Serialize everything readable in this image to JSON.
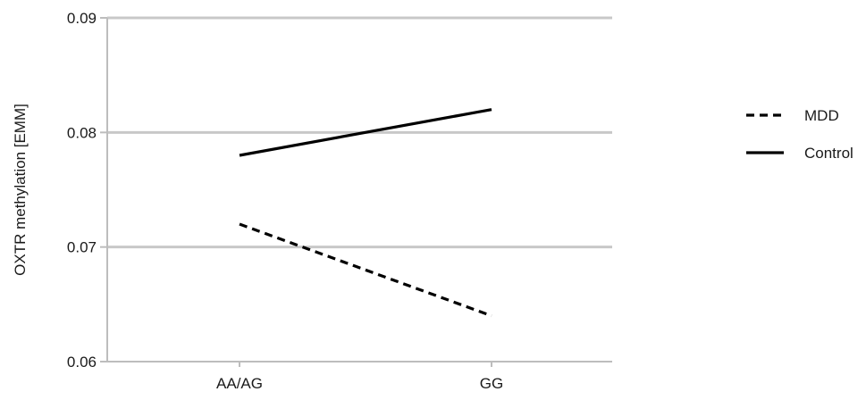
{
  "chart_data": {
    "type": "line",
    "title": "",
    "xlabel": "",
    "ylabel": "OXTR methylation [EMM]",
    "categories": [
      "AA/AG",
      "GG"
    ],
    "ylim": [
      0.06,
      0.09
    ],
    "yticks": [
      "0.06",
      "0.07",
      "0.08",
      "0.09"
    ],
    "grid": true,
    "legend_position": "right",
    "series": [
      {
        "name": "MDD",
        "values": [
          0.072,
          0.064
        ],
        "line_style": "dashed",
        "color": "#000000"
      },
      {
        "name": "Control",
        "values": [
          0.078,
          0.082
        ],
        "line_style": "solid",
        "color": "#000000"
      }
    ]
  }
}
